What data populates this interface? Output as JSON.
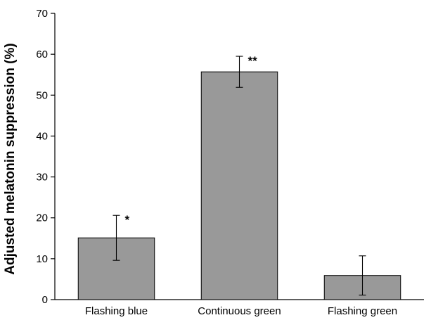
{
  "chart_data": {
    "type": "bar",
    "categories": [
      "Flashing blue",
      "Continuous green",
      "Flashing green"
    ],
    "values": [
      15.1,
      55.7,
      5.9
    ],
    "errors": [
      5.5,
      3.8,
      4.8
    ],
    "annotations": [
      "*",
      "**",
      ""
    ],
    "ylabel": "Adjusted melatonin suppression (%)",
    "xlabel": "",
    "ylim": [
      0,
      70
    ],
    "yticks": [
      0,
      10,
      20,
      30,
      40,
      50,
      60,
      70
    ],
    "grid": false,
    "bar_color": "#999999",
    "bar_edge_color": "#000000"
  }
}
